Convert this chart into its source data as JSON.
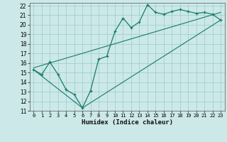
{
  "xlabel": "Humidex (Indice chaleur)",
  "bg_color": "#cce8e8",
  "line_color": "#1a7a6a",
  "grid_color": "#99cccc",
  "xlim": [
    -0.5,
    23.5
  ],
  "ylim": [
    11,
    22.3
  ],
  "xticks": [
    0,
    1,
    2,
    3,
    4,
    5,
    6,
    7,
    8,
    9,
    10,
    11,
    12,
    13,
    14,
    15,
    16,
    17,
    18,
    19,
    20,
    21,
    22,
    23
  ],
  "yticks": [
    11,
    12,
    13,
    14,
    15,
    16,
    17,
    18,
    19,
    20,
    21,
    22
  ],
  "main_x": [
    0,
    1,
    2,
    3,
    4,
    5,
    6,
    7,
    8,
    9,
    10,
    11,
    12,
    13,
    14,
    15,
    16,
    17,
    18,
    19,
    20,
    21,
    22,
    23
  ],
  "main_y": [
    15.3,
    14.8,
    16.1,
    14.8,
    13.2,
    12.7,
    11.3,
    13.1,
    16.4,
    16.7,
    19.3,
    20.7,
    19.7,
    20.3,
    22.1,
    21.3,
    21.1,
    21.4,
    21.6,
    21.4,
    21.2,
    21.3,
    21.1,
    20.5
  ],
  "upper_line_x": [
    0,
    23
  ],
  "upper_line_y": [
    15.5,
    21.3
  ],
  "lower_line_x": [
    0,
    6,
    23
  ],
  "lower_line_y": [
    15.3,
    11.3,
    20.5
  ]
}
